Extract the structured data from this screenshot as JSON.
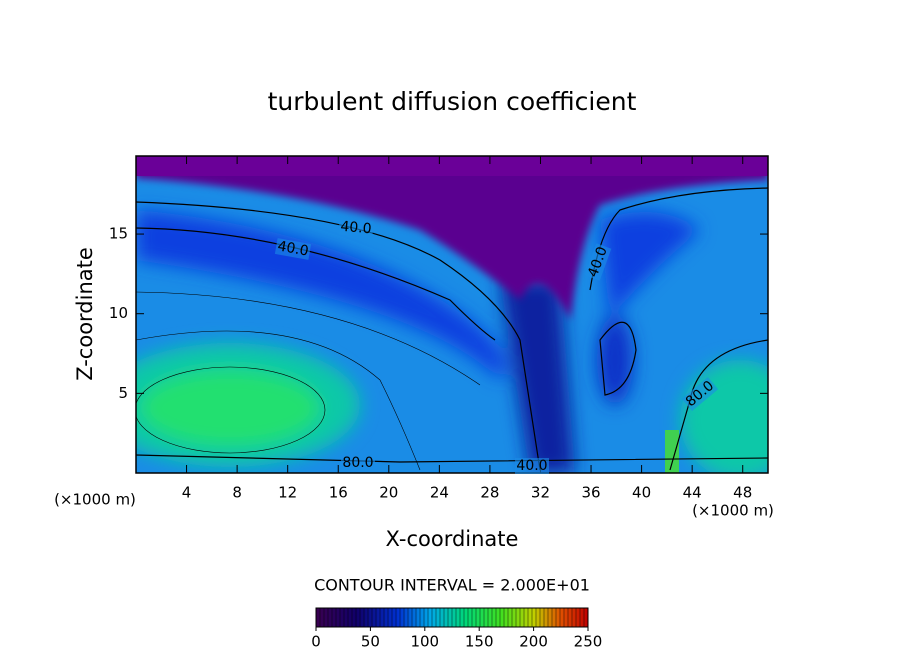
{
  "chart_data": {
    "type": "contour",
    "title": "turbulent diffusion coefficient",
    "xlabel": "X-coordinate",
    "ylabel": "Z-coordinate",
    "x_unit_label": "(×1000 m)",
    "y_unit_label": "(×1000 m)",
    "xlim": [
      0,
      50
    ],
    "xticks": [
      4,
      8,
      12,
      16,
      20,
      24,
      28,
      32,
      36,
      40,
      44,
      48
    ],
    "ylim": [
      0,
      19.9
    ],
    "yticks": [
      5,
      10,
      15
    ],
    "contour_labels": [
      "40.0",
      "40.0",
      "40.0",
      "40.0",
      "80.0",
      "80.0"
    ],
    "contour_interval_label": "CONTOUR INTERVAL = 2.000E+01",
    "colorbar": {
      "lim": [
        0,
        250
      ],
      "ticks": [
        0,
        50,
        100,
        150,
        200,
        250
      ]
    }
  }
}
